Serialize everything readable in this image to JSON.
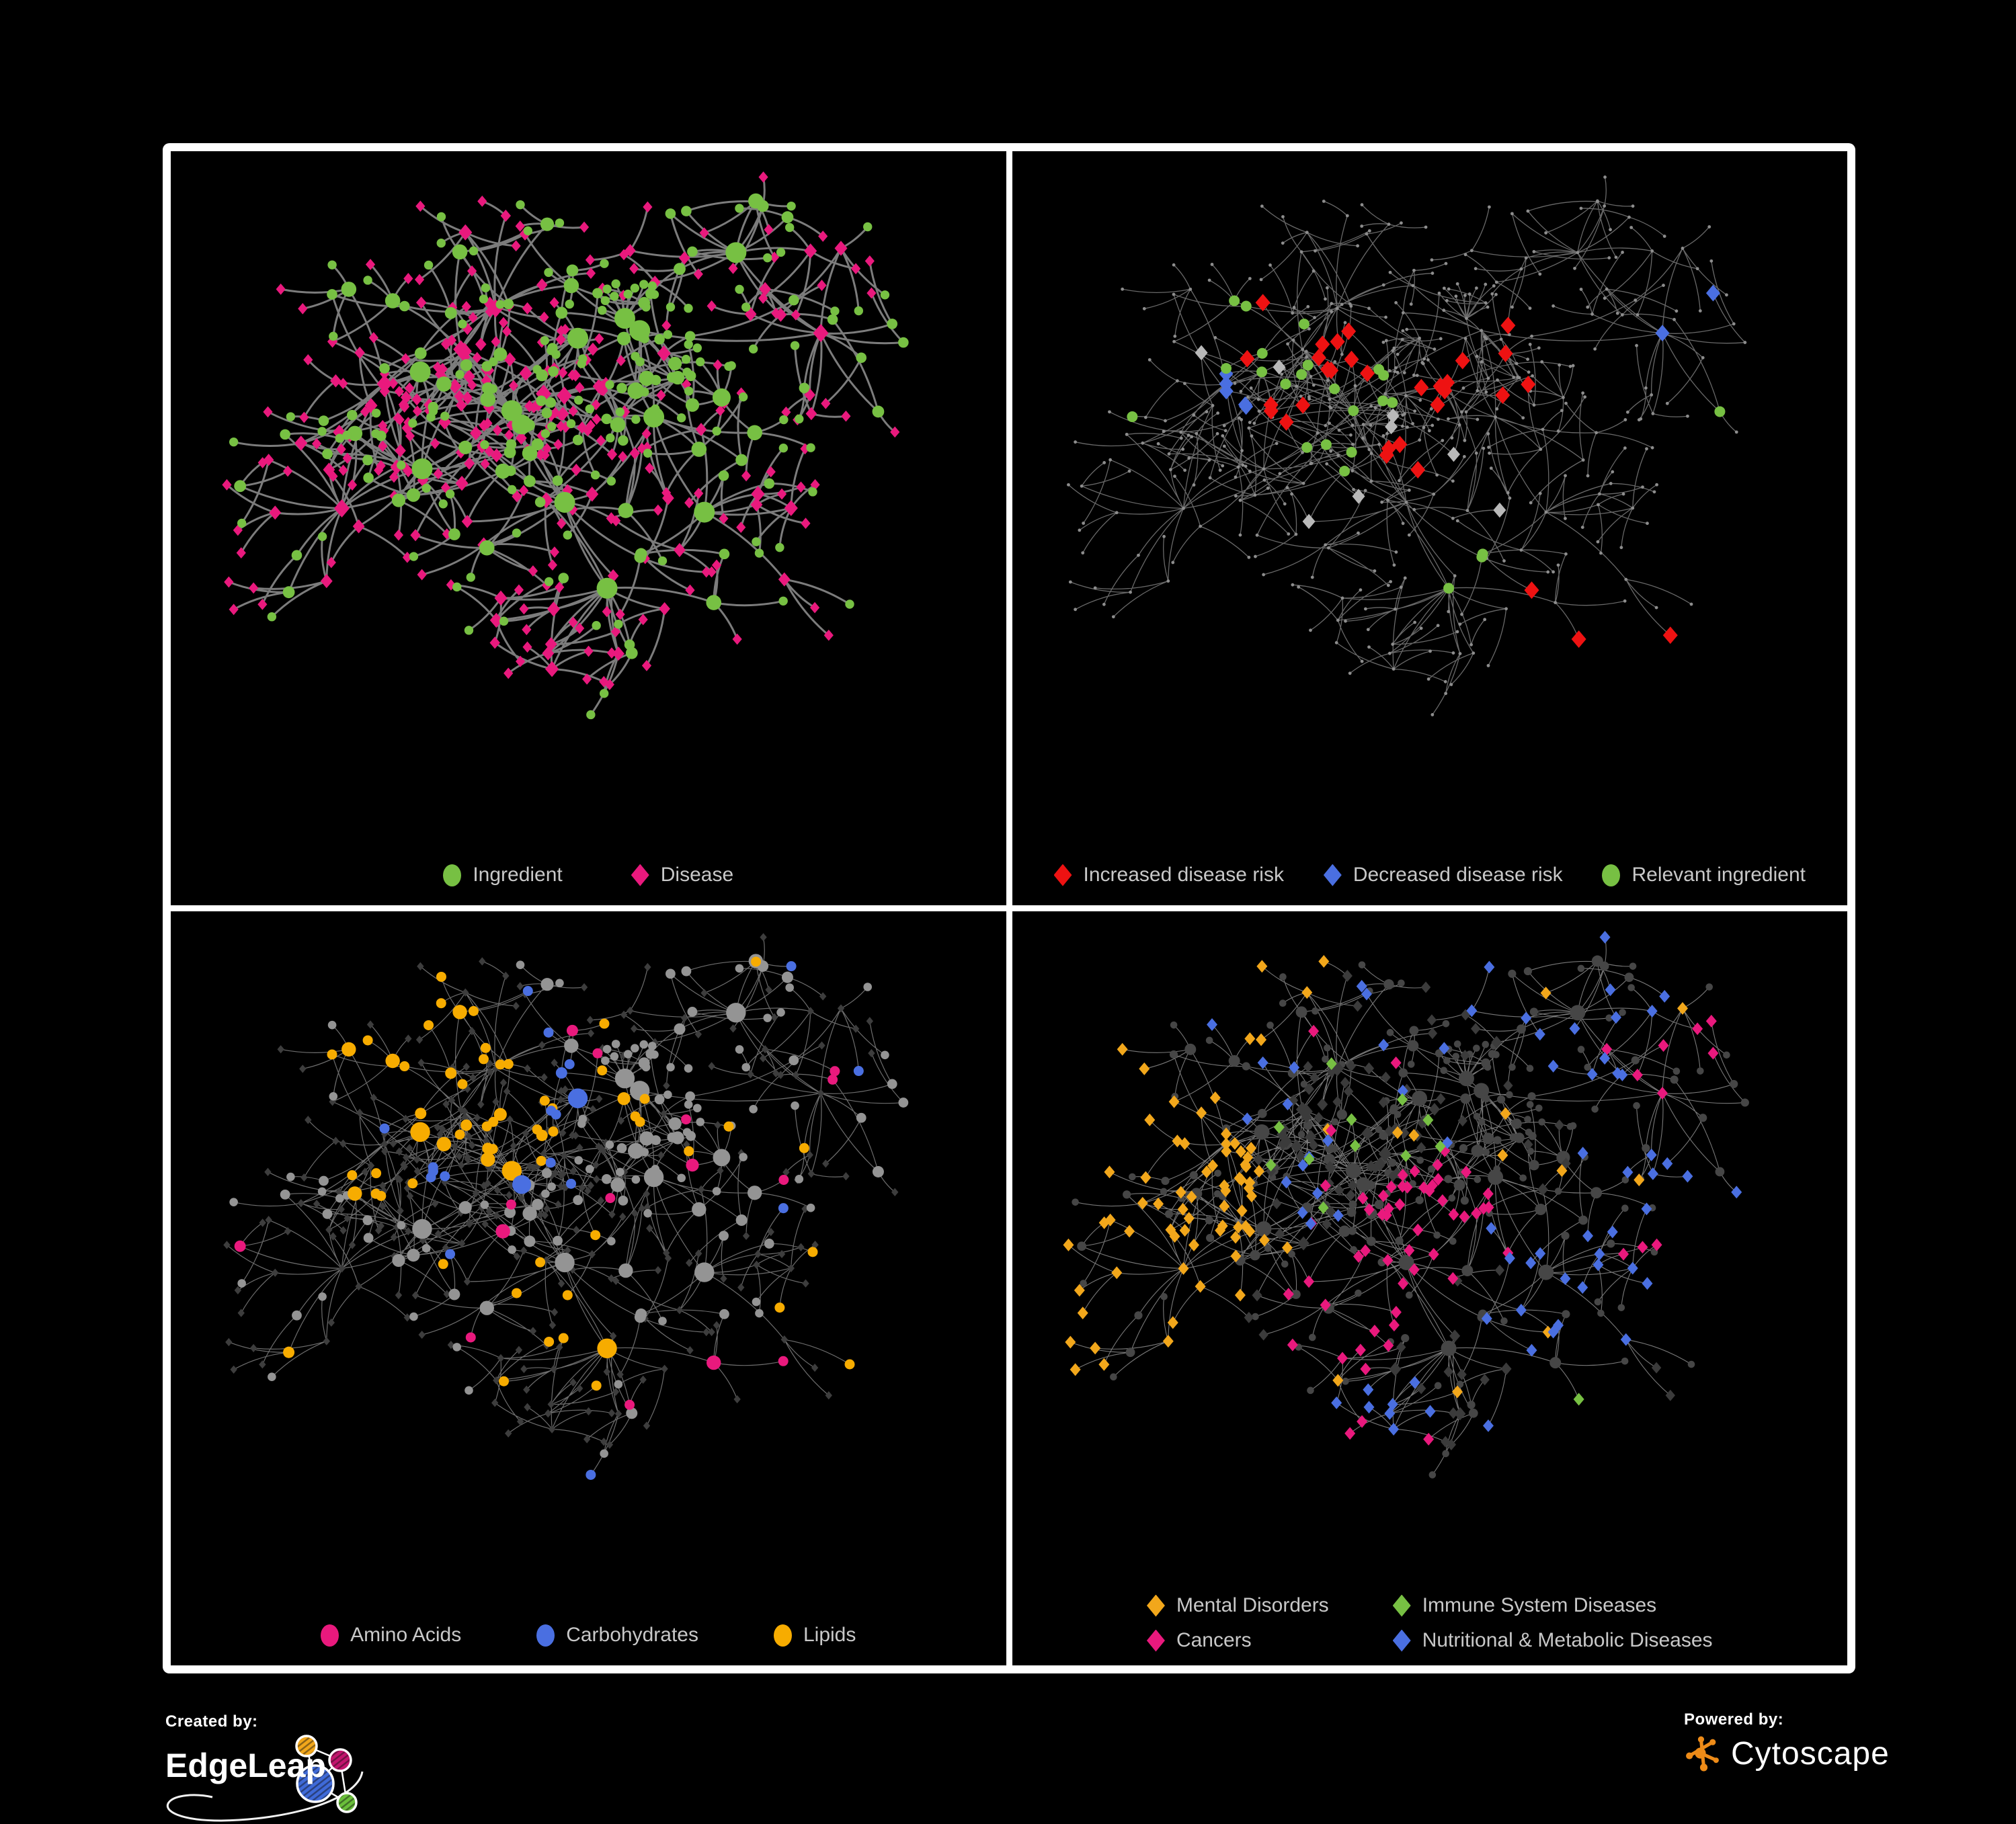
{
  "figure": {
    "background": "#000000",
    "frame_color": "#ffffff",
    "panel_background": "#000000",
    "legend_text_color": "#c8c8c8"
  },
  "panels": [
    {
      "name": "ingredient-disease-network",
      "legend": [
        {
          "label": "Ingredient",
          "shape": "circle",
          "color": "#77c043"
        },
        {
          "label": "Disease",
          "shape": "diamond",
          "color": "#e9197d"
        }
      ],
      "style": {
        "mode": "typed",
        "edge_color": "#7c7c7c",
        "edge_width": 3.0,
        "ingredient_color": "#77c043",
        "disease_color": "#e9197d"
      }
    },
    {
      "name": "disease-risk-network",
      "legend": [
        {
          "label": "Increased disease risk",
          "shape": "diamond",
          "color": "#ee1212"
        },
        {
          "label": "Decreased disease risk",
          "shape": "diamond",
          "color": "#4a6fe1"
        },
        {
          "label": "Relevant ingredient",
          "shape": "circle",
          "color": "#77c043"
        }
      ],
      "style": {
        "mode": "risk",
        "edge_color": "#686868",
        "edge_width": 1.3,
        "base_node_color": "#8d8d8d",
        "neutral_color": "#b9b9b9",
        "increased_count": 32,
        "decreased_count": 7,
        "neutral_count": 8,
        "relevant_count": 24
      }
    },
    {
      "name": "nutrient-class-network",
      "legend": [
        {
          "label": "Amino Acids",
          "shape": "circle",
          "color": "#e9197d"
        },
        {
          "label": "Carbohydrates",
          "shape": "circle",
          "color": "#4a6fe1"
        },
        {
          "label": "Lipids",
          "shape": "circle",
          "color": "#f7ac00"
        }
      ],
      "style": {
        "mode": "nutrient",
        "edge_color": "#6d6d6d",
        "edge_width": 1.2,
        "ingredient_base_color": "#949494",
        "disease_base_color": "#3d3d3d",
        "amino_count": 15,
        "carb_count": 20,
        "lipid_count": 64
      }
    },
    {
      "name": "disease-class-network",
      "legend": [
        {
          "label": "Mental Disorders",
          "shape": "diamond",
          "color": "#f2a71b"
        },
        {
          "label": "Immune System Diseases",
          "shape": "diamond",
          "color": "#77c043"
        },
        {
          "label": "Cancers",
          "shape": "diamond",
          "color": "#e9197d"
        },
        {
          "label": "Nutritional & Metabolic Diseases",
          "shape": "diamond",
          "color": "#4a6fe1"
        }
      ],
      "style": {
        "mode": "disease-class",
        "edge_color": "#787878",
        "edge_width": 1.1,
        "ingredient_base_color": "#464646",
        "disease_base_color": "#3b3b3b",
        "mental_count": 83,
        "immune_count": 12,
        "cancer_count": 66,
        "nutritional_count": 69
      }
    }
  ],
  "network": {
    "seed": 1337,
    "hub_count": 13,
    "target_nodes": 560,
    "cross_links": 48
  },
  "footer": {
    "created_by": "Created by:",
    "edgeleap": "EdgeLeap",
    "powered_by": "Powered by:",
    "cytoscape": "Cytoscape",
    "cytoscape_color": "#ed8b18",
    "edgeleap_node_colors": [
      "#f2a71b",
      "#c2146d",
      "#3f6ad8",
      "#6abf3a"
    ]
  }
}
